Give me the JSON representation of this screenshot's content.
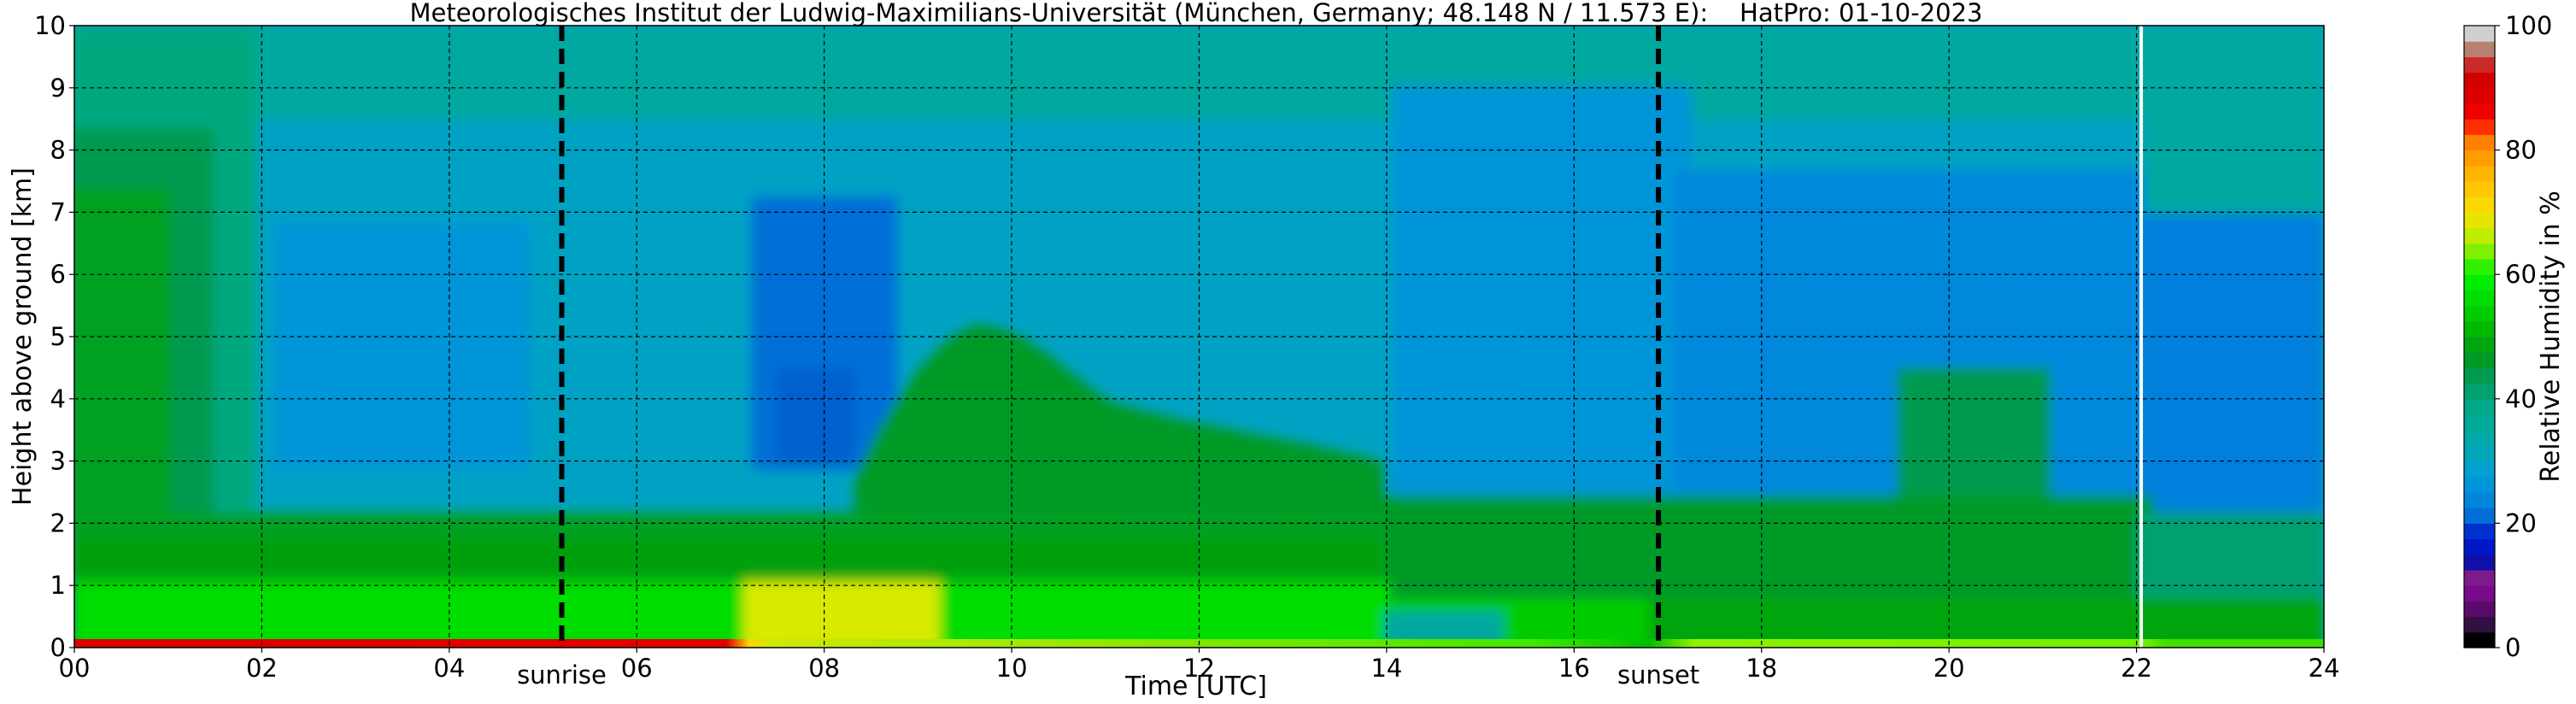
{
  "chart_data": {
    "type": "heatmap",
    "title": "Meteorologisches Institut der Ludwig-Maximilians-Universität (München, Germany; 48.148 N / 11.573 E):    HatPro: 01-10-2023",
    "xlabel": "Time [UTC]",
    "ylabel": "Height above ground [km]",
    "xlim": [
      0,
      24
    ],
    "ylim": [
      0,
      10
    ],
    "x_ticks": [
      "00",
      "02",
      "04",
      "06",
      "08",
      "10",
      "12",
      "14",
      "16",
      "18",
      "20",
      "22",
      "24"
    ],
    "y_ticks": [
      "0",
      "1",
      "2",
      "3",
      "4",
      "5",
      "6",
      "7",
      "8",
      "9",
      "10"
    ],
    "grid": true,
    "colorbar": {
      "label": "Relative Humidity in %",
      "range": [
        0,
        100
      ],
      "ticks": [
        "0",
        "20",
        "40",
        "60",
        "80",
        "100"
      ],
      "levels": [
        {
          "from": 0,
          "to": 2.5,
          "color": "#000000"
        },
        {
          "from": 2.5,
          "to": 5,
          "color": "#301040"
        },
        {
          "from": 5,
          "to": 7.5,
          "color": "#5a0a6a"
        },
        {
          "from": 7.5,
          "to": 10,
          "color": "#7a0a8a"
        },
        {
          "from": 10,
          "to": 12.5,
          "color": "#7f1a8a"
        },
        {
          "from": 12.5,
          "to": 15,
          "color": "#1010a8"
        },
        {
          "from": 15,
          "to": 17.5,
          "color": "#0018c8"
        },
        {
          "from": 17.5,
          "to": 20,
          "color": "#0030d0"
        },
        {
          "from": 20,
          "to": 22.5,
          "color": "#0070d8"
        },
        {
          "from": 22.5,
          "to": 25,
          "color": "#0085dc"
        },
        {
          "from": 25,
          "to": 27.5,
          "color": "#0095d8"
        },
        {
          "from": 27.5,
          "to": 30,
          "color": "#00a0d0"
        },
        {
          "from": 30,
          "to": 32.5,
          "color": "#00a5b8"
        },
        {
          "from": 32.5,
          "to": 35,
          "color": "#00a8a8"
        },
        {
          "from": 35,
          "to": 37.5,
          "color": "#00aa98"
        },
        {
          "from": 37.5,
          "to": 40,
          "color": "#00a888"
        },
        {
          "from": 40,
          "to": 42.5,
          "color": "#00a070"
        },
        {
          "from": 42.5,
          "to": 45,
          "color": "#009a50"
        },
        {
          "from": 45,
          "to": 47.5,
          "color": "#009a28"
        },
        {
          "from": 47.5,
          "to": 50,
          "color": "#00a510"
        },
        {
          "from": 50,
          "to": 52.5,
          "color": "#00b800"
        },
        {
          "from": 52.5,
          "to": 55,
          "color": "#00cc00"
        },
        {
          "from": 55,
          "to": 57.5,
          "color": "#00dd00"
        },
        {
          "from": 57.5,
          "to": 60,
          "color": "#00ee00"
        },
        {
          "from": 60,
          "to": 62.5,
          "color": "#30f000"
        },
        {
          "from": 62.5,
          "to": 65,
          "color": "#80f000"
        },
        {
          "from": 65,
          "to": 67.5,
          "color": "#c0ec00"
        },
        {
          "from": 67.5,
          "to": 70,
          "color": "#e8e400"
        },
        {
          "from": 70,
          "to": 72.5,
          "color": "#f8d800"
        },
        {
          "from": 72.5,
          "to": 75,
          "color": "#ffc800"
        },
        {
          "from": 75,
          "to": 77.5,
          "color": "#ffb400"
        },
        {
          "from": 77.5,
          "to": 80,
          "color": "#ff9c00"
        },
        {
          "from": 80,
          "to": 82.5,
          "color": "#ff8000"
        },
        {
          "from": 82.5,
          "to": 85,
          "color": "#ff3000"
        },
        {
          "from": 85,
          "to": 87.5,
          "color": "#ee0000"
        },
        {
          "from": 87.5,
          "to": 90,
          "color": "#dd0000"
        },
        {
          "from": 90,
          "to": 92.5,
          "color": "#d40000"
        },
        {
          "from": 92.5,
          "to": 95,
          "color": "#cc2a2a"
        },
        {
          "from": 95,
          "to": 97.5,
          "color": "#b88070"
        },
        {
          "from": 97.5,
          "to": 100,
          "color": "#cfcfcf"
        }
      ]
    },
    "markers": [
      {
        "label": "sunrise",
        "x": 5.2,
        "style": "dashed",
        "color": "#000000"
      },
      {
        "label": "sunset",
        "x": 16.9,
        "style": "dashed",
        "color": "#000000"
      },
      {
        "label": "",
        "x": 22.05,
        "style": "solid",
        "color": "#ffffff"
      }
    ],
    "humidity_profile_estimate": [
      {
        "time_range": "00-02",
        "0-0.2 km": 88,
        "0.2-1 km": 65,
        "1-2.5 km": 55,
        "2.5-7.5 km": 48,
        "7.5-10 km": 38
      },
      {
        "time_range": "02-07",
        "0-0.2 km": 86,
        "0.2-1 km": 62,
        "1-1.8 km": 52,
        "1.8-10 km": 30
      },
      {
        "time_range": "07-09",
        "0-1 km": 68,
        "1-1.8 km": 55,
        "3-4 km": 22,
        "4-10 km": 27
      },
      {
        "time_range": "09-11",
        "0-1 km": 62,
        "1-4.5 km": 50,
        "4.5-10 km": 30
      },
      {
        "time_range": "11-14",
        "0-1 km": 60,
        "1-3 km": 50,
        "3-10 km": 30
      },
      {
        "time_range": "14-17",
        "0-0.5 km": 40,
        "0.5-1.8 km": 52,
        "1.8-10 km": 28
      },
      {
        "time_range": "17-22",
        "0-0.2 km": 62,
        "0.2-1.5 km": 55,
        "1.5-3.5 km": 45,
        "3.5-10 km": 28
      },
      {
        "time_range": "22-24",
        "0-0.3 km": 58,
        "0.3-1.5 km": 42,
        "1.5-2.5 km": 38,
        "2.5-4 km": 24,
        "4-10 km": 32
      }
    ]
  }
}
